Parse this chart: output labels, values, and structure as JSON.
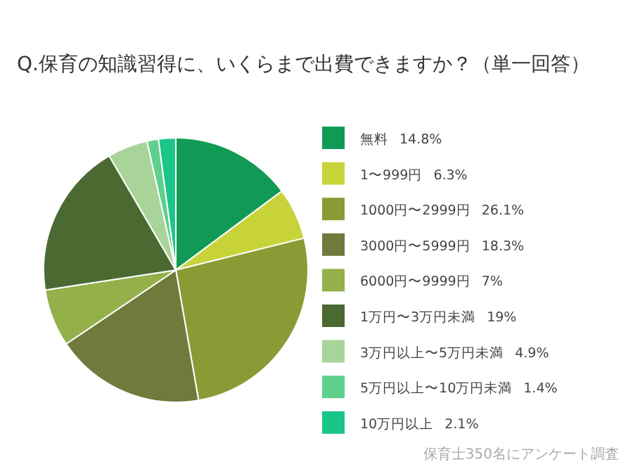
{
  "chart_data": {
    "type": "pie",
    "title": "Q.保育の知識習得に、いくらまで出費できますか？（単一回答）",
    "categories": [
      "無料",
      "1〜999円",
      "1000円〜2999円",
      "3000円〜5999円",
      "6000円〜9999円",
      "1万円〜3万円未満",
      "3万円以上〜5万円未満",
      "5万円以上〜10万円未満",
      "10万円以上"
    ],
    "values": [
      14.8,
      6.3,
      26.1,
      18.3,
      7,
      19,
      4.9,
      1.4,
      2.1
    ],
    "value_labels": [
      "14.8%",
      "6.3%",
      "26.1%",
      "18.3%",
      "7%",
      "19%",
      "4.9%",
      "1.4%",
      "2.1%"
    ],
    "colors": [
      "#119a55",
      "#c8d33a",
      "#8c9a35",
      "#6f7a3c",
      "#93b04a",
      "#4a6a32",
      "#a8d49a",
      "#5fcf8e",
      "#19c688"
    ],
    "legend": "right",
    "annotations": [
      "保育士350名にアンケート調査"
    ]
  }
}
